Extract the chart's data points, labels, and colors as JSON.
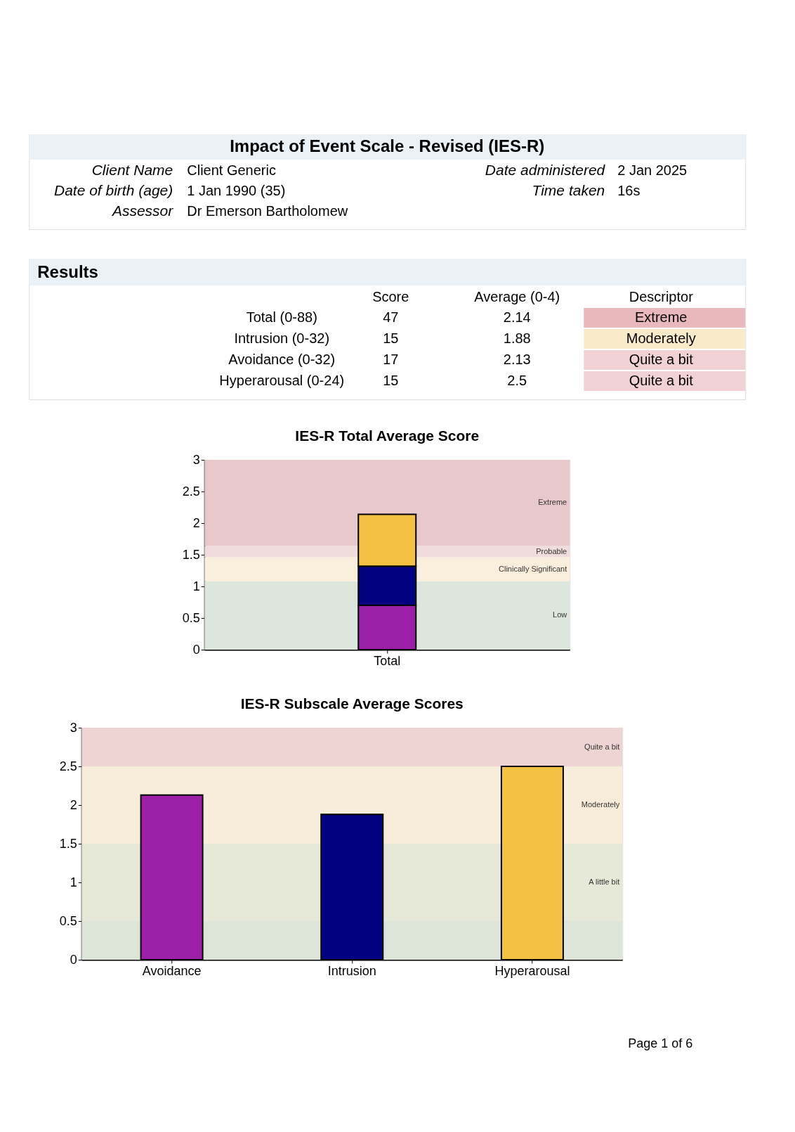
{
  "chart_data": [
    {
      "type": "other",
      "title": "Impact of Event Scale - Revised (IES-R)",
      "annotations": [
        "Client Name",
        "Client Generic",
        "Date of birth (age)",
        "1 Jan 1990 (35)",
        "Assessor",
        "Dr Emerson Bartholomew",
        "Date administered",
        "2 Jan 2025",
        "Time taken",
        "16s"
      ]
    },
    {
      "type": "other",
      "title": "Results",
      "categories": [
        "Score",
        "Average (0-4)",
        "Descriptor"
      ],
      "y_categories": [
        "Total (0-88)",
        "Intrusion (0-32)",
        "Avoidance (0-32)",
        "Hyperarousal (0-24)"
      ],
      "cell_labels": [
        [
          "47",
          "2.14",
          "Extreme"
        ],
        [
          "15",
          "1.88",
          "Moderately"
        ],
        [
          "17",
          "2.13",
          "Quite a bit"
        ],
        [
          "15",
          "2.5",
          "Quite a bit"
        ]
      ],
      "colors": [
        "#e8b8bc",
        "#f9ebca",
        "#f0d2d5",
        "#f0d2d5"
      ]
    },
    {
      "type": "bar",
      "stacked": true,
      "title": "IES-R Total Average Score",
      "categories": [
        "Total"
      ],
      "series": [
        {
          "color": "#9c1fa8",
          "values": [
            0.7
          ]
        },
        {
          "color": "#000080",
          "values": [
            0.62
          ]
        },
        {
          "color": "#f4c242",
          "values": [
            0.82
          ]
        }
      ],
      "ylim": [
        0,
        3
      ],
      "yticks": [
        0,
        0.5,
        1,
        1.5,
        2,
        2.5,
        3
      ],
      "bands": [
        {
          "axis": "y",
          "from": 0,
          "to": 1.08,
          "label": "Low",
          "color": "#dce6dc"
        },
        {
          "axis": "y",
          "from": 1.08,
          "to": 1.46,
          "label": "Clinically Significant",
          "color": "#faefdc"
        },
        {
          "axis": "y",
          "from": 1.46,
          "to": 1.64,
          "label": "Probable",
          "color": "#f0dcdc"
        },
        {
          "axis": "y",
          "from": 1.64,
          "to": 3,
          "label": "Extreme",
          "color": "#e8c8ca"
        }
      ]
    },
    {
      "type": "bar",
      "title": "IES-R Subscale Average Scores",
      "categories": [
        "Avoidance",
        "Intrusion",
        "Hyperarousal"
      ],
      "values": [
        2.13,
        1.88,
        2.5
      ],
      "colors": [
        "#9c1fa8",
        "#000080",
        "#f4c242"
      ],
      "ylim": [
        0,
        3
      ],
      "yticks": [
        0,
        0.5,
        1,
        1.5,
        2,
        2.5,
        3
      ],
      "bands": [
        {
          "axis": "y",
          "from": 0,
          "to": 0.5,
          "label": null,
          "color": "#dde5d9"
        },
        {
          "axis": "y",
          "from": 0.5,
          "to": 1.5,
          "label": "A little bit",
          "color": "#e6e8d8"
        },
        {
          "axis": "y",
          "from": 1.5,
          "to": 2.5,
          "label": "Moderately",
          "color": "#f8ecda"
        },
        {
          "axis": "y",
          "from": 2.5,
          "to": 3,
          "label": "Quite a bit",
          "color": "#efd4d4"
        }
      ],
      "annotations": [
        "Page 1 of 6"
      ]
    }
  ]
}
